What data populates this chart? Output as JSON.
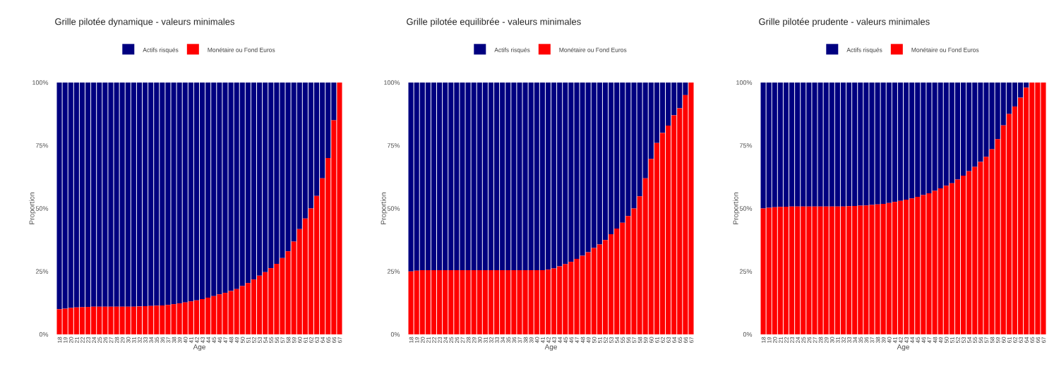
{
  "chart_data": [
    {
      "type": "bar",
      "title": "Grille pilotée dynamique - valeurs minimales",
      "xlabel": "Age",
      "ylabel": "Proportion",
      "stacked": true,
      "legend": "top",
      "categories": [
        "18",
        "19",
        "20",
        "21",
        "22",
        "23",
        "24",
        "25",
        "26",
        "27",
        "28",
        "29",
        "30",
        "31",
        "32",
        "33",
        "34",
        "35",
        "36",
        "37",
        "38",
        "39",
        "40",
        "41",
        "42",
        "43",
        "44",
        "45",
        "46",
        "47",
        "48",
        "49",
        "50",
        "51",
        "52",
        "53",
        "54",
        "55",
        "56",
        "57",
        "58",
        "59",
        "60",
        "61",
        "62",
        "63",
        "64",
        "65",
        "66",
        "67"
      ],
      "ylim": [
        0,
        100
      ],
      "yticks": [
        {
          "value": 0,
          "label": "0%"
        },
        {
          "value": 25,
          "label": "25%"
        },
        {
          "value": 50,
          "label": "50%"
        },
        {
          "value": 75,
          "label": "75%"
        },
        {
          "value": 100,
          "label": "100%"
        }
      ],
      "series": [
        {
          "name": "Monétaire ou Fond Euros",
          "color": "#ff0000",
          "values": [
            10,
            10.2,
            10.5,
            10.7,
            10.8,
            10.9,
            11,
            11,
            11,
            11,
            11,
            11,
            11,
            11,
            11.1,
            11.2,
            11.3,
            11.4,
            11.5,
            11.7,
            12,
            12.3,
            12.7,
            13.1,
            13.5,
            14,
            14.6,
            15.2,
            15.9,
            16.5,
            17.2,
            18,
            19.2,
            20.4,
            21.8,
            23.3,
            24.7,
            26.3,
            28,
            30.3,
            33,
            36.8,
            41.8,
            46,
            50,
            55,
            62,
            70,
            85,
            100
          ]
        },
        {
          "name": "Actifs risqués",
          "color": "#000080",
          "values": [
            90,
            89.8,
            89.5,
            89.3,
            89.2,
            89.1,
            89,
            89,
            89,
            89,
            89,
            89,
            89,
            89,
            88.9,
            88.8,
            88.7,
            88.6,
            88.5,
            88.3,
            88,
            87.7,
            87.3,
            86.9,
            86.5,
            86,
            85.4,
            84.8,
            84.1,
            83.5,
            82.8,
            82,
            80.8,
            79.6,
            78.2,
            76.7,
            75.3,
            73.7,
            72,
            69.7,
            67,
            63.2,
            58.2,
            54,
            50,
            45,
            38,
            30,
            15,
            0
          ]
        }
      ]
    },
    {
      "type": "bar",
      "title": "Grille pilotée equilibrée - valeurs minimales",
      "xlabel": "Age",
      "ylabel": "Proportion",
      "stacked": true,
      "legend": "top",
      "categories": [
        "18",
        "19",
        "20",
        "21",
        "22",
        "23",
        "24",
        "25",
        "26",
        "27",
        "28",
        "29",
        "30",
        "31",
        "32",
        "33",
        "34",
        "35",
        "36",
        "37",
        "38",
        "39",
        "40",
        "41",
        "42",
        "43",
        "44",
        "45",
        "46",
        "47",
        "48",
        "49",
        "50",
        "51",
        "52",
        "53",
        "54",
        "55",
        "56",
        "57",
        "58",
        "59",
        "60",
        "61",
        "62",
        "63",
        "64",
        "65",
        "66",
        "67"
      ],
      "ylim": [
        0,
        100
      ],
      "yticks": [
        {
          "value": 0,
          "label": "0%"
        },
        {
          "value": 25,
          "label": "25%"
        },
        {
          "value": 50,
          "label": "50%"
        },
        {
          "value": 75,
          "label": "75%"
        },
        {
          "value": 100,
          "label": "100%"
        }
      ],
      "series": [
        {
          "name": "Monétaire ou Fond Euros",
          "color": "#ff0000",
          "values": [
            25,
            25.3,
            25.5,
            25.5,
            25.5,
            25.5,
            25.5,
            25.5,
            25.5,
            25.5,
            25.5,
            25.5,
            25.5,
            25.5,
            25.5,
            25.5,
            25.5,
            25.5,
            25.5,
            25.5,
            25.5,
            25.5,
            25.5,
            25.5,
            25.7,
            26.2,
            27,
            27.9,
            28.8,
            30,
            31.2,
            32.6,
            34.3,
            35.7,
            37.5,
            39.8,
            42,
            44.3,
            47,
            50,
            54.8,
            62,
            69.7,
            76,
            80,
            82.9,
            87,
            89.8,
            95,
            100
          ]
        },
        {
          "name": "Actifs risqués",
          "color": "#000080",
          "values": [
            75,
            74.7,
            74.5,
            74.5,
            74.5,
            74.5,
            74.5,
            74.5,
            74.5,
            74.5,
            74.5,
            74.5,
            74.5,
            74.5,
            74.5,
            74.5,
            74.5,
            74.5,
            74.5,
            74.5,
            74.5,
            74.5,
            74.5,
            74.5,
            74.3,
            73.8,
            73,
            72.1,
            71.2,
            70,
            68.8,
            67.4,
            65.7,
            64.3,
            62.5,
            60.2,
            58,
            55.7,
            53,
            50,
            45.2,
            38,
            30.3,
            24,
            20,
            17.1,
            13,
            10.2,
            5,
            0
          ]
        }
      ]
    },
    {
      "type": "bar",
      "title": "Grille pilotée prudente - valeurs minimales",
      "xlabel": "Age",
      "ylabel": "Proportion",
      "stacked": true,
      "legend": "top",
      "categories": [
        "18",
        "19",
        "20",
        "21",
        "22",
        "23",
        "24",
        "25",
        "26",
        "27",
        "28",
        "29",
        "30",
        "31",
        "32",
        "33",
        "34",
        "35",
        "36",
        "37",
        "38",
        "39",
        "40",
        "41",
        "42",
        "43",
        "44",
        "45",
        "46",
        "47",
        "48",
        "49",
        "50",
        "51",
        "52",
        "53",
        "54",
        "55",
        "56",
        "57",
        "58",
        "59",
        "60",
        "61",
        "62",
        "63",
        "64",
        "65",
        "66",
        "67"
      ],
      "ylim": [
        0,
        100
      ],
      "yticks": [
        {
          "value": 0,
          "label": "0%"
        },
        {
          "value": 25,
          "label": "25%"
        },
        {
          "value": 50,
          "label": "50%"
        },
        {
          "value": 75,
          "label": "75%"
        },
        {
          "value": 100,
          "label": "100%"
        }
      ],
      "series": [
        {
          "name": "Monétaire ou Fond Euros",
          "color": "#ff0000",
          "values": [
            50,
            50.3,
            50.5,
            50.6,
            50.7,
            50.8,
            50.8,
            50.8,
            50.8,
            50.8,
            50.8,
            50.8,
            50.8,
            50.8,
            50.8,
            50.9,
            51,
            51.1,
            51.2,
            51.4,
            51.6,
            51.8,
            52.2,
            52.6,
            53,
            53.5,
            54,
            54.6,
            55.3,
            56,
            57,
            58,
            59,
            60,
            61.5,
            63,
            64.8,
            66.5,
            68.5,
            70.5,
            73.5,
            77.5,
            83,
            87.5,
            90.5,
            94,
            98,
            100,
            100,
            100
          ]
        },
        {
          "name": "Actifs risqués",
          "color": "#000080",
          "values": [
            50,
            49.7,
            49.5,
            49.4,
            49.3,
            49.2,
            49.2,
            49.2,
            49.2,
            49.2,
            49.2,
            49.2,
            49.2,
            49.2,
            49.2,
            49.1,
            49,
            48.9,
            48.8,
            48.6,
            48.4,
            48.2,
            47.8,
            47.4,
            47,
            46.5,
            46,
            45.4,
            44.7,
            44,
            43,
            42,
            41,
            40,
            38.5,
            37,
            35.2,
            33.5,
            31.5,
            29.5,
            26.5,
            22.5,
            17,
            12.5,
            9.5,
            6,
            2,
            0,
            0,
            0
          ]
        }
      ]
    }
  ]
}
